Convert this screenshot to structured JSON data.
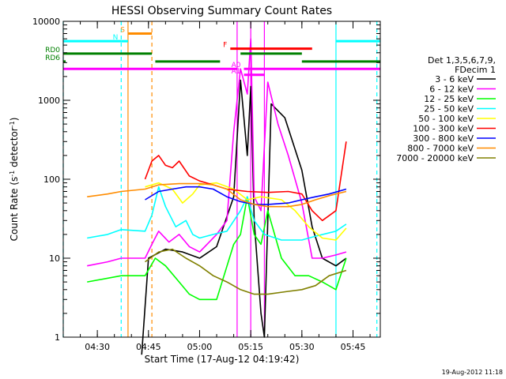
{
  "chart_data": {
    "type": "line",
    "title": "HESSI Observing Summary Count Rates",
    "xlabel": "Start Time (17-Aug-12 04:19:42)",
    "ylabel": "Count Rate (s⁻¹ detector⁻¹)",
    "ylabel_parts": {
      "main": "Count Rate (s",
      "sup1": "-1",
      "mid": " detector",
      "sup2": "-1",
      "end": ")"
    },
    "y_scale": "log",
    "ylim": [
      1,
      10000
    ],
    "xlim": [
      "04:20",
      "05:53"
    ],
    "x_ticks": [
      "04:30",
      "04:45",
      "05:00",
      "05:15",
      "05:30",
      "05:45"
    ],
    "y_ticks": [
      "1",
      "10",
      "100",
      "1000",
      "10000"
    ],
    "legend_title": [
      "Det 1,3,5,6,7,9,",
      "FDecim 1"
    ],
    "legend_position": "right",
    "footer_date": "19-Aug-2012 11:18",
    "series": [
      {
        "name": "3 - 6 keV",
        "color": "#000000",
        "points": [
          [
            "04:43",
            0.5
          ],
          [
            "04:45",
            10
          ],
          [
            "04:50",
            13
          ],
          [
            "04:55",
            12
          ],
          [
            "05:00",
            10
          ],
          [
            "05:05",
            14
          ],
          [
            "05:10",
            60
          ],
          [
            "05:12",
            1800
          ],
          [
            "05:14",
            200
          ],
          [
            "05:15",
            1500
          ],
          [
            "05:16",
            30
          ],
          [
            "05:18",
            2
          ],
          [
            "05:19",
            1
          ],
          [
            "05:21",
            900
          ],
          [
            "05:25",
            600
          ],
          [
            "05:30",
            130
          ],
          [
            "05:33",
            25
          ],
          [
            "05:36",
            10
          ],
          [
            "05:40",
            8
          ],
          [
            "05:43",
            10
          ]
        ]
      },
      {
        "name": "6 - 12 keV",
        "color": "#ff00ff",
        "points": [
          [
            "04:27",
            8
          ],
          [
            "04:33",
            9
          ],
          [
            "04:37",
            10
          ],
          [
            "04:44",
            10
          ],
          [
            "04:46",
            15
          ],
          [
            "04:48",
            22
          ],
          [
            "04:51",
            16
          ],
          [
            "04:54",
            20
          ],
          [
            "04:57",
            14
          ],
          [
            "05:00",
            12
          ],
          [
            "05:05",
            20
          ],
          [
            "05:08",
            30
          ],
          [
            "05:10",
            400
          ],
          [
            "05:12",
            2500
          ],
          [
            "05:14",
            1200
          ],
          [
            "05:15",
            6000
          ],
          [
            "05:16",
            60
          ],
          [
            "05:18",
            40
          ],
          [
            "05:20",
            1700
          ],
          [
            "05:23",
            500
          ],
          [
            "05:26",
            200
          ],
          [
            "05:30",
            50
          ],
          [
            "05:33",
            10
          ],
          [
            "05:36",
            10
          ],
          [
            "05:40",
            11
          ],
          [
            "05:43",
            12
          ]
        ]
      },
      {
        "name": "12 - 25 keV",
        "color": "#00ff00",
        "points": [
          [
            "04:27",
            5
          ],
          [
            "04:37",
            6
          ],
          [
            "04:44",
            6
          ],
          [
            "04:47",
            10
          ],
          [
            "04:50",
            8
          ],
          [
            "04:54",
            5
          ],
          [
            "04:57",
            3.5
          ],
          [
            "05:00",
            3
          ],
          [
            "05:05",
            3
          ],
          [
            "05:10",
            15
          ],
          [
            "05:12",
            20
          ],
          [
            "05:14",
            60
          ],
          [
            "05:16",
            20
          ],
          [
            "05:18",
            15
          ],
          [
            "05:20",
            40
          ],
          [
            "05:24",
            10
          ],
          [
            "05:28",
            6
          ],
          [
            "05:32",
            6
          ],
          [
            "05:36",
            5
          ],
          [
            "05:40",
            4
          ],
          [
            "05:43",
            10
          ]
        ]
      },
      {
        "name": "25 - 50 keV",
        "color": "#00ffff",
        "points": [
          [
            "04:27",
            18
          ],
          [
            "04:33",
            20
          ],
          [
            "04:37",
            23
          ],
          [
            "04:44",
            22
          ],
          [
            "04:46",
            35
          ],
          [
            "04:48",
            80
          ],
          [
            "04:50",
            45
          ],
          [
            "04:53",
            25
          ],
          [
            "04:56",
            30
          ],
          [
            "04:58",
            20
          ],
          [
            "05:00",
            18
          ],
          [
            "05:04",
            20
          ],
          [
            "05:08",
            22
          ],
          [
            "05:12",
            40
          ],
          [
            "05:14",
            60
          ],
          [
            "05:16",
            30
          ],
          [
            "05:19",
            20
          ],
          [
            "05:24",
            17
          ],
          [
            "05:30",
            17
          ],
          [
            "05:34",
            19
          ],
          [
            "05:40",
            22
          ],
          [
            "05:43",
            27
          ]
        ]
      },
      {
        "name": "50 - 100 keV",
        "color": "#ffff00",
        "points": [
          [
            "04:44",
            80
          ],
          [
            "04:48",
            90
          ],
          [
            "04:52",
            75
          ],
          [
            "04:55",
            50
          ],
          [
            "04:58",
            65
          ],
          [
            "05:00",
            85
          ],
          [
            "05:05",
            90
          ],
          [
            "05:10",
            75
          ],
          [
            "05:14",
            55
          ],
          [
            "05:18",
            60
          ],
          [
            "05:24",
            55
          ],
          [
            "05:28",
            40
          ],
          [
            "05:32",
            25
          ],
          [
            "05:36",
            18
          ],
          [
            "05:40",
            17
          ],
          [
            "05:43",
            24
          ]
        ]
      },
      {
        "name": "100 - 300 keV",
        "color": "#ff0000",
        "points": [
          [
            "04:44",
            100
          ],
          [
            "04:46",
            170
          ],
          [
            "04:48",
            200
          ],
          [
            "04:50",
            150
          ],
          [
            "04:52",
            140
          ],
          [
            "04:54",
            170
          ],
          [
            "04:57",
            110
          ],
          [
            "05:00",
            95
          ],
          [
            "05:04",
            85
          ],
          [
            "05:08",
            75
          ],
          [
            "05:14",
            70
          ],
          [
            "05:20",
            68
          ],
          [
            "05:26",
            70
          ],
          [
            "05:30",
            65
          ],
          [
            "05:33",
            40
          ],
          [
            "05:36",
            30
          ],
          [
            "05:40",
            40
          ],
          [
            "05:43",
            300
          ]
        ]
      },
      {
        "name": "300 - 800 keV",
        "color": "#0000ff",
        "points": [
          [
            "04:44",
            55
          ],
          [
            "04:48",
            70
          ],
          [
            "04:52",
            75
          ],
          [
            "04:56",
            80
          ],
          [
            "05:00",
            80
          ],
          [
            "05:04",
            75
          ],
          [
            "05:08",
            60
          ],
          [
            "05:12",
            52
          ],
          [
            "05:16",
            48
          ],
          [
            "05:20",
            48
          ],
          [
            "05:26",
            50
          ],
          [
            "05:30",
            55
          ],
          [
            "05:34",
            60
          ],
          [
            "05:38",
            65
          ],
          [
            "05:43",
            75
          ]
        ]
      },
      {
        "name": "800 - 7000 keV",
        "color": "#ff8c00",
        "points": [
          [
            "04:27",
            60
          ],
          [
            "04:33",
            65
          ],
          [
            "04:37",
            70
          ],
          [
            "04:44",
            75
          ],
          [
            "04:48",
            85
          ],
          [
            "04:54",
            88
          ],
          [
            "05:00",
            88
          ],
          [
            "05:04",
            85
          ],
          [
            "05:08",
            75
          ],
          [
            "05:12",
            55
          ],
          [
            "05:16",
            48
          ],
          [
            "05:20",
            45
          ],
          [
            "05:26",
            45
          ],
          [
            "05:30",
            48
          ],
          [
            "05:34",
            55
          ],
          [
            "05:38",
            62
          ],
          [
            "05:43",
            70
          ]
        ]
      },
      {
        "name": "7000 - 20000 keV",
        "color": "#808000",
        "points": [
          [
            "04:44",
            9
          ],
          [
            "04:48",
            12
          ],
          [
            "04:52",
            13
          ],
          [
            "04:56",
            10
          ],
          [
            "05:00",
            8
          ],
          [
            "05:04",
            6
          ],
          [
            "05:08",
            5
          ],
          [
            "05:12",
            4
          ],
          [
            "05:16",
            3.5
          ],
          [
            "05:20",
            3.5
          ],
          [
            "05:26",
            3.8
          ],
          [
            "05:30",
            4
          ],
          [
            "05:34",
            4.5
          ],
          [
            "05:38",
            6
          ],
          [
            "05:43",
            7
          ]
        ]
      }
    ],
    "flag_bars": [
      {
        "label": "S",
        "color": "#ff8c00",
        "start": "04:39",
        "end": "04:46",
        "level": 7000
      },
      {
        "label": "N",
        "color": "#00ffff",
        "start": "04:37",
        "end": "04:39",
        "level": 5600
      },
      {
        "label": "",
        "color": "#00ffff",
        "start": "04:20",
        "end": "04:37",
        "level": 5600
      },
      {
        "label": "",
        "color": "#00ffff",
        "start": "05:40",
        "end": "05:53",
        "level": 5600
      },
      {
        "label": "F",
        "color": "#ff0000",
        "start": "05:09",
        "end": "05:33",
        "level": 4500
      },
      {
        "label": "RD0",
        "color": "#008000",
        "start": "04:20",
        "end": "04:46",
        "level": 3900
      },
      {
        "label": "",
        "color": "#008000",
        "start": "04:47",
        "end": "05:06",
        "level": 3100
      },
      {
        "label": "",
        "color": "#008000",
        "start": "05:12",
        "end": "05:30",
        "level": 3900
      },
      {
        "label": "",
        "color": "#008000",
        "start": "05:30",
        "end": "05:53",
        "level": 3100
      },
      {
        "label": "RD6",
        "color": "#008000",
        "start": "04:20",
        "end": "04:20",
        "level": 3100
      },
      {
        "label": "A0",
        "color": "#ff00ff",
        "start": "05:13",
        "end": "05:19",
        "level": 2500
      },
      {
        "label": "",
        "color": "#ff00ff",
        "start": "04:20",
        "end": "05:11",
        "level": 2500
      },
      {
        "label": "",
        "color": "#ff00ff",
        "start": "05:19",
        "end": "05:53",
        "level": 2500
      },
      {
        "label": "A1",
        "color": "#ff00ff",
        "start": "05:13",
        "end": "05:19",
        "level": 2100
      }
    ],
    "vertical_markers": [
      {
        "time": "04:20",
        "color": "#00ffff",
        "dashed": true
      },
      {
        "time": "04:37",
        "color": "#00ffff",
        "dashed": true
      },
      {
        "time": "04:39",
        "color": "#ff8c00",
        "dashed": false
      },
      {
        "time": "04:46",
        "color": "#ff8c00",
        "dashed": true
      },
      {
        "time": "05:11",
        "color": "#ff00ff",
        "dashed": false
      },
      {
        "time": "05:15",
        "color": "#ff00ff",
        "dashed": false
      },
      {
        "time": "05:19",
        "color": "#ff00ff",
        "dashed": false
      },
      {
        "time": "05:40",
        "color": "#00ffff",
        "dashed": false
      },
      {
        "time": "05:52",
        "color": "#00ffff",
        "dashed": true
      }
    ]
  }
}
